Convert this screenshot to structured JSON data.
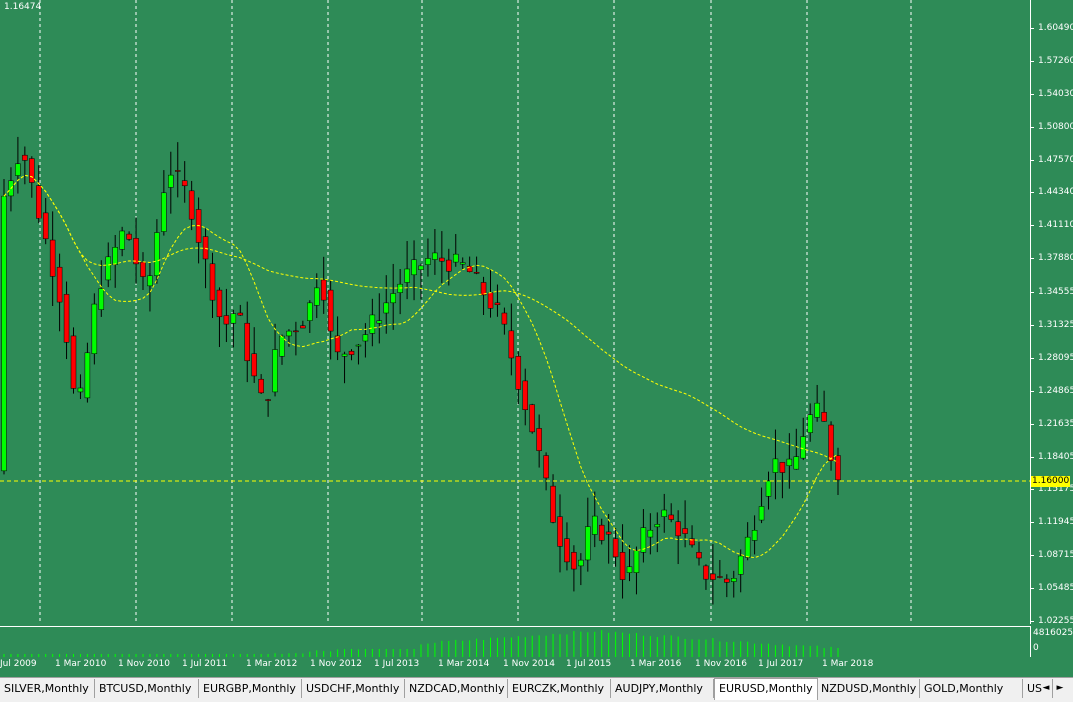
{
  "chart": {
    "symbol_period": "EURUSD,Monthly",
    "top_label": "1.16474",
    "current_price": "1.16000",
    "colors": {
      "background": "#2e8b57",
      "bull_candle": "#00ff00",
      "bear_candle": "#ff0000",
      "ma_line": "#ffff00",
      "grid": "#ffffff",
      "volume": "#00ff00"
    },
    "price_axis": [
      "1.60490",
      "1.57260",
      "1.54030",
      "1.50800",
      "1.47570",
      "1.44340",
      "1.41110",
      "1.37880",
      "1.34555",
      "1.31325",
      "1.28095",
      "1.24865",
      "1.21635",
      "1.18405",
      "1.15175",
      "1.11945",
      "1.08715",
      "1.05485",
      "1.02255"
    ],
    "volume_axis": {
      "max": "4816025",
      "min": "0"
    },
    "time_axis": [
      "Jul 2009",
      "1 Mar 2010",
      "1 Nov 2010",
      "1 Jul 2011",
      "1 Mar 2012",
      "1 Nov 2012",
      "1 Jul 2013",
      "1 Mar 2014",
      "1 Nov 2014",
      "1 Jul 2015",
      "1 Mar 2016",
      "1 Nov 2016",
      "1 Jul 2017",
      "1 Mar 2018"
    ]
  },
  "tabs": [
    {
      "label": "SILVER,Monthly"
    },
    {
      "label": "BTCUSD,Monthly"
    },
    {
      "label": "EURGBP,Monthly"
    },
    {
      "label": "USDCHF,Monthly"
    },
    {
      "label": "NZDCAD,Monthly"
    },
    {
      "label": "EURCZK,Monthly"
    },
    {
      "label": "AUDJPY,Monthly"
    },
    {
      "label": "EURUSD,Monthly"
    },
    {
      "label": "NZDUSD,Monthly"
    },
    {
      "label": "GOLD,Monthly"
    },
    {
      "label": "US"
    }
  ],
  "nav": {
    "prev": "◄",
    "next": "►"
  }
}
